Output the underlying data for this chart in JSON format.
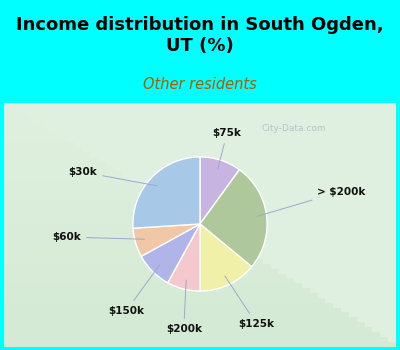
{
  "title": "Income distribution in South Ogden,\nUT (%)",
  "subtitle": "Other residents",
  "title_color": "#000000",
  "subtitle_color": "#b05a00",
  "background_cyan": "#00ffff",
  "slices": [
    {
      "label": "$75k",
      "value": 10,
      "color": "#c8b4e0"
    },
    {
      "label": "> $200k",
      "value": 26,
      "color": "#aec89c"
    },
    {
      "label": "$125k",
      "value": 14,
      "color": "#f0f0a8"
    },
    {
      "label": "$200k",
      "value": 8,
      "color": "#f4c8cc"
    },
    {
      "label": "$150k",
      "value": 9,
      "color": "#b0b4e8"
    },
    {
      "label": "$60k",
      "value": 7,
      "color": "#f0c8a8"
    },
    {
      "label": "$30k",
      "value": 26,
      "color": "#a8c8e8"
    }
  ],
  "watermark": "City-Data.com",
  "title_fontsize": 13,
  "subtitle_fontsize": 10.5
}
